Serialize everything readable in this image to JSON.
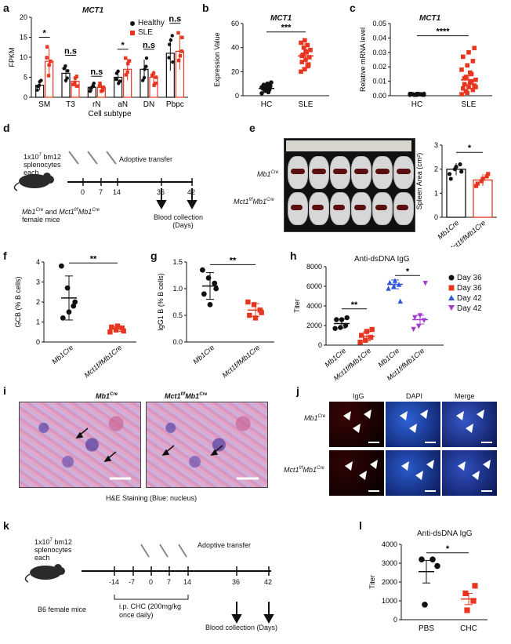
{
  "panels": {
    "a": "a",
    "b": "b",
    "c": "c",
    "d": "d",
    "e": "e",
    "f": "f",
    "g": "g",
    "h": "h",
    "i": "i",
    "j": "j",
    "k": "k",
    "l": "l"
  },
  "colors": {
    "healthy": "#111111",
    "sle": "#e8351f",
    "day36_ko": "#e8351f",
    "day42_wt": "#2f57d8",
    "day42_ko": "#a23bd0"
  },
  "panel_a": {
    "title": "MCT1",
    "legend": [
      "Healthy",
      "SLE"
    ],
    "significance": [
      "*",
      "n.s",
      "n.s",
      "*",
      "n.s",
      "n.s"
    ]
  },
  "panel_b": {
    "title": "MCT1",
    "sig": "***"
  },
  "panel_c": {
    "title": "MCT1",
    "sig": "****"
  },
  "panel_d": {
    "cells_line1": "1x10",
    "cells_exp": "7",
    "cells_line1b": " bm12",
    "cells_line2": "splenocytes",
    "cells_line3": "each",
    "transfer": "Adoptive transfer",
    "mice_a": "Mb1",
    "mice_a_sup": "Cre",
    "mice_mid": " and ",
    "mice_b": "Mct1",
    "mice_b_sup1": "f/f",
    "mice_b2": "Mb1",
    "mice_b_sup2": "Cre",
    "mice_line2": "female mice",
    "days": [
      "0",
      "7",
      "14",
      "36",
      "42"
    ],
    "collection_line1": "Blood collection",
    "collection_line2": "(Days)"
  },
  "panel_e": {
    "row1": "Mb1",
    "row1_sup": "Cre",
    "row2a": "Mct1",
    "row2_sup1": "f/f",
    "row2b": "Mb1",
    "row2_sup2": "Cre",
    "sig": "*"
  },
  "panel_f": {
    "sig": "**"
  },
  "panel_g": {
    "sig": "**"
  },
  "panel_h": {
    "title": "Anti-dsDNA IgG",
    "legend": [
      "Day 36",
      "Day 36",
      "Day 42",
      "Day 42"
    ],
    "sig1": "**",
    "sig2": "*"
  },
  "panel_i": {
    "label1a": "Mb1",
    "label1_sup": "Cre",
    "label2a": "Mct1",
    "label2_sup1": "f/f",
    "label2b": "Mb1",
    "label2_sup2": "Cre",
    "caption": "H&E Staining (Blue: nucleus)"
  },
  "panel_j": {
    "cols": [
      "IgG",
      "DAPI",
      "Merge"
    ],
    "row1a": "Mb1",
    "row1_sup": "Cre",
    "row2a": "Mct1",
    "row2_sup1": "f/f",
    "row2b": "Mb1",
    "row2_sup2": "Cre"
  },
  "panel_k": {
    "cells_line1": "1x10",
    "cells_exp": "7",
    "cells_line1b": " bm12",
    "cells_line2": "splenocytes",
    "cells_line3": "each",
    "transfer": "Adoptive transfer",
    "days": [
      "-14",
      "-7",
      "0",
      "7",
      "14",
      "36",
      "42"
    ],
    "mice": "B6 female mice",
    "treatment": "i.p. CHC (200mg/kg once daily)",
    "collection": "Blood collection (Days)"
  },
  "panel_l": {
    "title": "Anti-dsDNA IgG",
    "sig": "*"
  },
  "chart_data": [
    {
      "panel": "a",
      "type": "bar",
      "title": "MCT1",
      "xlabel": "Cell subtype",
      "ylabel": "FPKM",
      "ylim": [
        0,
        20
      ],
      "yticks": [
        "0",
        "5",
        "10",
        "15",
        "20"
      ],
      "categories": [
        "SM",
        "T3",
        "rN",
        "aN",
        "DN",
        "Pbpc"
      ],
      "series": [
        {
          "name": "Healthy",
          "values": [
            3,
            6,
            2.5,
            5,
            7,
            11
          ]
        },
        {
          "name": "SLE",
          "values": [
            9,
            4,
            2.5,
            7,
            5,
            11.5
          ]
        }
      ]
    },
    {
      "panel": "b",
      "type": "scatter",
      "ylabel": "Expression Value",
      "ylim": [
        0,
        60
      ],
      "yticks": [
        "0",
        "20",
        "40",
        "60"
      ],
      "categories": [
        "HC",
        "SLE"
      ],
      "means": [
        6,
        33
      ]
    },
    {
      "panel": "c",
      "type": "scatter",
      "ylabel": "Relative mRNA level",
      "ylim": [
        0,
        0.05
      ],
      "yticks": [
        "0.00",
        "0.01",
        "0.02",
        "0.03",
        "0.04",
        "0.05"
      ],
      "categories": [
        "HC",
        "SLE"
      ],
      "means": [
        0.001,
        0.011
      ]
    },
    {
      "panel": "e",
      "type": "bar",
      "ylabel": "Spleen Area (cm²)",
      "ylim": [
        0,
        3
      ],
      "yticks": [
        "0",
        "1",
        "2",
        "3"
      ],
      "categories": [
        "Mb1Cre",
        "Mct1f/fMb1Cre"
      ],
      "values": [
        2.0,
        1.55
      ]
    },
    {
      "panel": "f",
      "type": "scatter",
      "ylabel": "GCB (% B cells)",
      "ylim": [
        0,
        4
      ],
      "yticks": [
        "0",
        "1",
        "2",
        "3",
        "4"
      ],
      "categories": [
        "Mb1Cre",
        "Mct1f/fMb1Cre"
      ],
      "means": [
        2.2,
        0.65
      ]
    },
    {
      "panel": "g",
      "type": "scatter",
      "ylabel": "IgG1 B (% B cells)",
      "ylim": [
        0,
        1.5
      ],
      "yticks": [
        "0.0",
        "0.5",
        "1.0",
        "1.5"
      ],
      "categories": [
        "Mb1Cre",
        "Mct1f/fMb1Cre"
      ],
      "means": [
        1.05,
        0.6
      ]
    },
    {
      "panel": "h",
      "type": "scatter",
      "title": "Anti-dsDNA IgG",
      "ylabel": "Titer",
      "ylim": [
        0,
        8000
      ],
      "yticks": [
        "0",
        "2000",
        "4000",
        "6000",
        "8000"
      ],
      "categories": [
        "Mb1Cre",
        "Mct1f/fMb1Cre",
        "Mb1Cre",
        "Mct1f/fMb1Cre"
      ],
      "series": [
        {
          "name": "Day 36",
          "values": [
            2200
          ]
        },
        {
          "name": "Day 36",
          "values": [
            900
          ]
        },
        {
          "name": "Day 42",
          "values": [
            6200
          ]
        },
        {
          "name": "Day 42",
          "values": [
            2600
          ]
        }
      ]
    },
    {
      "panel": "l",
      "type": "scatter",
      "title": "Anti-dsDNA IgG",
      "ylabel": "Titer",
      "ylim": [
        0,
        4000
      ],
      "yticks": [
        "0",
        "1000",
        "2000",
        "3000",
        "4000"
      ],
      "categories": [
        "PBS",
        "CHC"
      ],
      "means": [
        2550,
        1100
      ]
    }
  ]
}
